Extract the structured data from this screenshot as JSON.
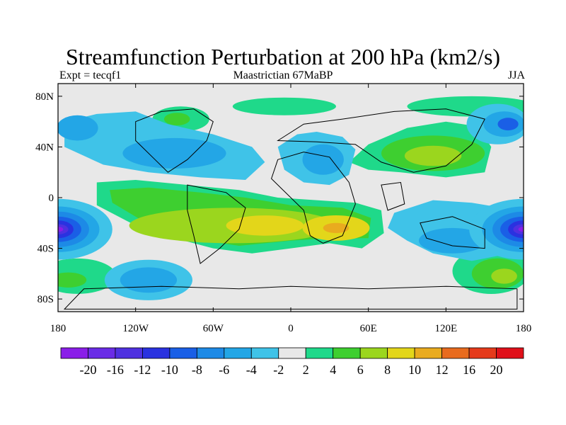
{
  "figure": {
    "title": "Streamfunction Perturbation at 200 hPa (km2/s)",
    "left_label": "Expt = tecqf1",
    "center_label": "Maastrictian 67MaBP",
    "right_label": "JJA"
  },
  "chart_data": {
    "type": "heatmap",
    "projection": "cylindrical equidistant",
    "field": "200 hPa streamfunction perturbation",
    "units": "km2/s",
    "lat_ticks": [
      "80N",
      "40N",
      "0",
      "40S",
      "80S"
    ],
    "lon_ticks": [
      "180",
      "120W",
      "60W",
      "0",
      "60E",
      "120E",
      "180"
    ],
    "lon_range": [
      -180,
      180
    ],
    "lat_range": [
      -90,
      90
    ],
    "levels": [
      -20,
      -16,
      -12,
      -10,
      -8,
      -6,
      -4,
      -2,
      2,
      4,
      6,
      8,
      10,
      12,
      16,
      20
    ],
    "colorbar_labels": [
      "-20",
      "-16",
      "-12",
      "-10",
      "-8",
      "-6",
      "-4",
      "-2",
      "2",
      "4",
      "6",
      "8",
      "10",
      "12",
      "16",
      "20"
    ],
    "colors": [
      "#8a1ee8",
      "#6a2ce6",
      "#4f31e0",
      "#2a32e0",
      "#1a5fe6",
      "#1d8ae6",
      "#23a6e6",
      "#3fc3e8",
      "#e8e8e8",
      "#1fd98a",
      "#3ecf30",
      "#9bd61e",
      "#e3d61a",
      "#e9ab1f",
      "#e86b1e",
      "#e53a1b",
      "#e0101a"
    ],
    "features": [
      {
        "name": "strong-negative-center-south-pacific",
        "lon": -180,
        "lat": -25,
        "value": -20
      },
      {
        "name": "strong-negative-center-west-pacific",
        "lon": 165,
        "lat": -25,
        "value": -20
      },
      {
        "name": "positive-band-south-atlantic",
        "lon": -40,
        "lat": -25,
        "value": 10
      },
      {
        "name": "positive-center-africa",
        "lon": 35,
        "lat": -25,
        "value": 10
      },
      {
        "name": "positive-center-east-asia",
        "lon": 110,
        "lat": 35,
        "value": 8
      },
      {
        "name": "negative-center-north-atlantic",
        "lon": -90,
        "lat": 35,
        "value": -6
      },
      {
        "name": "negative-center-europe",
        "lon": 20,
        "lat": 30,
        "value": -6
      },
      {
        "name": "negative-center-north-pacific",
        "lon": 160,
        "lat": 60,
        "value": -10
      },
      {
        "name": "negative-center-south-pacific-high-lat",
        "lon": -110,
        "lat": -65,
        "value": -6
      },
      {
        "name": "negative-center-indian-ocean",
        "lon": 120,
        "lat": -35,
        "value": -6
      }
    ]
  }
}
